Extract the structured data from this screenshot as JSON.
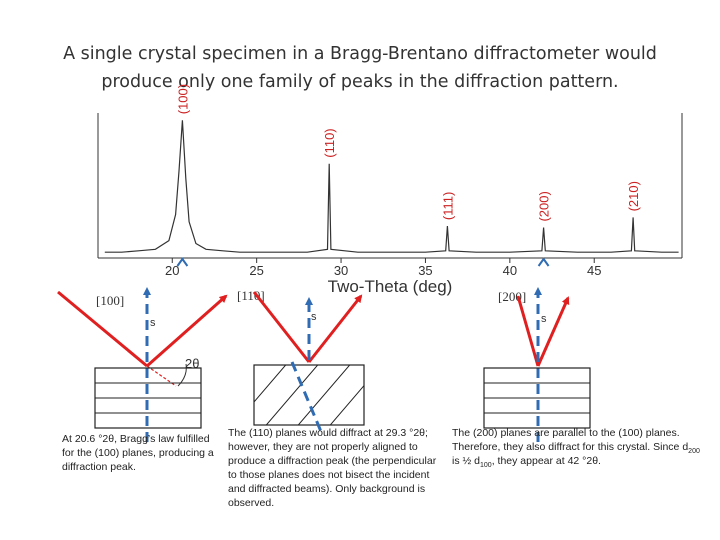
{
  "title": {
    "line1": "A single crystal specimen in a Bragg-Brentano diffractometer would",
    "line2": "produce only one family of peaks in the diffraction pattern."
  },
  "chart_data": {
    "type": "line",
    "xlabel": "Two-Theta (deg)",
    "ylabel": "",
    "xlim": [
      15.6,
      50.2
    ],
    "xticks": [
      20,
      25,
      30,
      35,
      40,
      45
    ],
    "peaks": [
      {
        "label": "(100)",
        "two_theta": 20.6,
        "height": 0.95
      },
      {
        "label": "(110)",
        "two_theta": 29.3,
        "height": 0.65
      },
      {
        "label": "(111)",
        "two_theta": 36.3,
        "height": 0.22
      },
      {
        "label": "(200)",
        "two_theta": 42.0,
        "height": 0.21
      },
      {
        "label": "(210)",
        "two_theta": 47.3,
        "height": 0.28
      }
    ],
    "series": [
      {
        "x": [
          16,
          17,
          18,
          19,
          19.8,
          20.2,
          20.4,
          20.6,
          20.8,
          21.0,
          21.4,
          22,
          23,
          24,
          26,
          28,
          29.2,
          29.3,
          29.4,
          31,
          33,
          35,
          36.2,
          36.3,
          36.4,
          38,
          40,
          41.9,
          42.0,
          42.1,
          44,
          46,
          47.2,
          47.3,
          47.4,
          49,
          50
        ],
        "y": [
          0.04,
          0.04,
          0.05,
          0.06,
          0.12,
          0.3,
          0.6,
          0.95,
          0.55,
          0.25,
          0.1,
          0.06,
          0.05,
          0.04,
          0.04,
          0.04,
          0.06,
          0.65,
          0.06,
          0.04,
          0.04,
          0.04,
          0.05,
          0.22,
          0.05,
          0.04,
          0.04,
          0.05,
          0.21,
          0.05,
          0.04,
          0.04,
          0.05,
          0.28,
          0.05,
          0.04,
          0.04
        ]
      }
    ]
  },
  "diagrams": {
    "labels": [
      "[100]",
      "[110]",
      "[200]"
    ],
    "s_label": "s",
    "angle_label": "2θ"
  },
  "captions": {
    "left": "At 20.6 °2θ, Bragg’s law fulfilled for the (100) planes, producing a diffraction peak.",
    "middle": "The (110) planes would diffract at 29.3 °2θ; however, they are not properly aligned to produce a diffraction peak (the perpendicular to those planes does not bisect the incident and diffracted beams). Only background is observed.",
    "right_part1": "The (200) planes are parallel to the (100) planes. Therefore, they also diffract for this crystal. Since d",
    "right_sub1": "200",
    "right_part2": " is ½ d",
    "right_sub2": "100",
    "right_part3": ", they appear at 42 °2θ."
  },
  "colors": {
    "beam": "#e02020",
    "normal": "#2f6cb3",
    "peak": "#cc2222",
    "text": "#333333"
  }
}
